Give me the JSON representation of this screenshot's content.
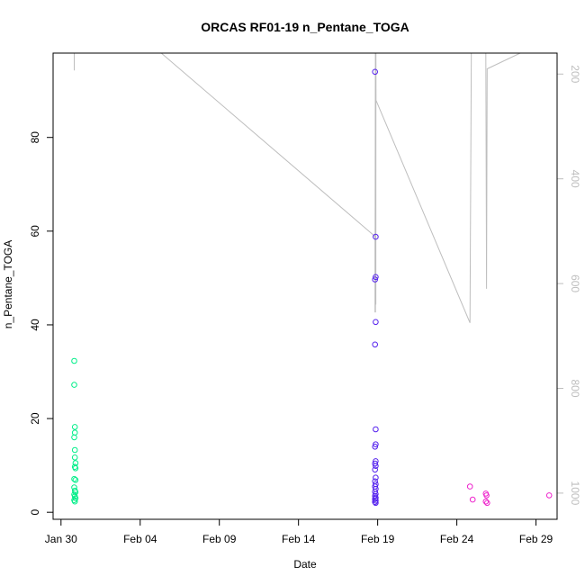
{
  "chart_data": {
    "type": "scatter",
    "title": "ORCAS RF01-19 n_Pentane_TOGA",
    "xlabel": "Date",
    "ylabel": "n_Pentane_TOGA",
    "x_tick_labels": [
      "Jan 30",
      "Feb 04",
      "Feb 09",
      "Feb 14",
      "Feb 19",
      "Feb 24",
      "Feb 29"
    ],
    "x_tick_values": [
      "2016-01-30",
      "2016-02-04",
      "2016-02-09",
      "2016-02-14",
      "2016-02-19",
      "2016-02-24",
      "2016-02-29"
    ],
    "xlim": [
      "2016-01-29T12:00",
      "2016-03-01T08:00"
    ],
    "y_ticks": [
      0,
      20,
      40,
      60,
      80
    ],
    "ylim": [
      -1.5,
      98
    ],
    "y2_ticks": [
      200,
      400,
      600,
      800,
      1000
    ],
    "y2lim": [
      1050,
      160
    ],
    "grid": false,
    "legend": "none",
    "series": [
      {
        "color": "#00ee88",
        "points": [
          [
            "2016-01-30T20:00",
            32.3
          ],
          [
            "2016-01-30T20:00",
            27.2
          ],
          [
            "2016-01-30T21:00",
            18.2
          ],
          [
            "2016-01-30T21:00",
            17.0
          ],
          [
            "2016-01-30T20:00",
            16.0
          ],
          [
            "2016-01-30T21:00",
            13.3
          ],
          [
            "2016-01-30T21:00",
            11.7
          ],
          [
            "2016-01-30T22:00",
            10.5
          ],
          [
            "2016-01-30T21:00",
            9.7
          ],
          [
            "2016-01-30T22:00",
            9.4
          ],
          [
            "2016-01-30T20:00",
            7.1
          ],
          [
            "2016-01-30T22:00",
            6.9
          ],
          [
            "2016-01-30T20:00",
            5.3
          ],
          [
            "2016-01-30T21:00",
            4.6
          ],
          [
            "2016-01-30T22:00",
            4.3
          ],
          [
            "2016-01-30T20:00",
            3.8
          ],
          [
            "2016-01-30T21:00",
            3.4
          ],
          [
            "2016-01-30T22:00",
            3.0
          ],
          [
            "2016-01-30T20:00",
            2.6
          ],
          [
            "2016-01-30T21:00",
            2.3
          ]
        ]
      },
      {
        "color": "#5522ee",
        "points": [
          [
            "2016-02-18T20:00",
            94.0
          ],
          [
            "2016-02-18T21:00",
            58.8
          ],
          [
            "2016-02-18T21:00",
            50.2
          ],
          [
            "2016-02-18T20:00",
            49.7
          ],
          [
            "2016-02-18T21:00",
            40.6
          ],
          [
            "2016-02-18T20:00",
            35.8
          ],
          [
            "2016-02-18T21:00",
            17.7
          ],
          [
            "2016-02-18T21:00",
            14.5
          ],
          [
            "2016-02-18T20:00",
            14.0
          ],
          [
            "2016-02-18T21:00",
            10.9
          ],
          [
            "2016-02-18T20:00",
            10.4
          ],
          [
            "2016-02-18T21:00",
            9.9
          ],
          [
            "2016-02-18T20:00",
            9.1
          ],
          [
            "2016-02-18T21:00",
            7.4
          ],
          [
            "2016-02-18T20:00",
            6.6
          ],
          [
            "2016-02-18T21:00",
            6.0
          ],
          [
            "2016-02-18T20:00",
            5.5
          ],
          [
            "2016-02-18T21:00",
            5.0
          ],
          [
            "2016-02-18T20:00",
            4.4
          ],
          [
            "2016-02-18T21:00",
            3.9
          ],
          [
            "2016-02-18T20:00",
            3.5
          ],
          [
            "2016-02-18T21:00",
            3.1
          ],
          [
            "2016-02-18T20:00",
            2.8
          ],
          [
            "2016-02-18T21:00",
            2.5
          ],
          [
            "2016-02-18T20:00",
            2.2
          ],
          [
            "2016-02-18T21:00",
            2.0
          ]
        ]
      },
      {
        "color": "#ee22cc",
        "points": [
          [
            "2016-02-24T20:00",
            5.5
          ],
          [
            "2016-02-25T00:00",
            2.7
          ],
          [
            "2016-02-25T20:00",
            4.0
          ],
          [
            "2016-02-25T21:00",
            3.6
          ],
          [
            "2016-02-25T20:00",
            2.3
          ],
          [
            "2016-02-25T22:00",
            2.0
          ],
          [
            "2016-02-29T20:00",
            3.6
          ]
        ]
      }
    ],
    "pressure_trace": {
      "color": "#bebebe",
      "points": [
        [
          "2016-01-30T20:00",
          193
        ],
        [
          "2016-01-30T20:00",
          150
        ],
        [
          "2016-01-30T22:00",
          150
        ],
        [
          "2016-01-30T22:00",
          160
        ],
        [
          "2016-02-05T08:00",
          160
        ],
        [
          "2016-02-18T20:00",
          510
        ],
        [
          "2016-02-18T20:00",
          655
        ],
        [
          "2016-02-18T20:30",
          160
        ],
        [
          "2016-02-18T20:40",
          655
        ],
        [
          "2016-02-18T21:00",
          160
        ],
        [
          "2016-02-18T21:10",
          640
        ],
        [
          "2016-02-18T21:20",
          160
        ],
        [
          "2016-02-18T21:30",
          250
        ],
        [
          "2016-02-24T20:00",
          675
        ],
        [
          "2016-02-24T22:00",
          160
        ],
        [
          "2016-02-25T20:00",
          160
        ],
        [
          "2016-02-25T21:00",
          610
        ],
        [
          "2016-02-25T22:00",
          190
        ],
        [
          "2016-02-28T00:00",
          160
        ]
      ]
    }
  }
}
